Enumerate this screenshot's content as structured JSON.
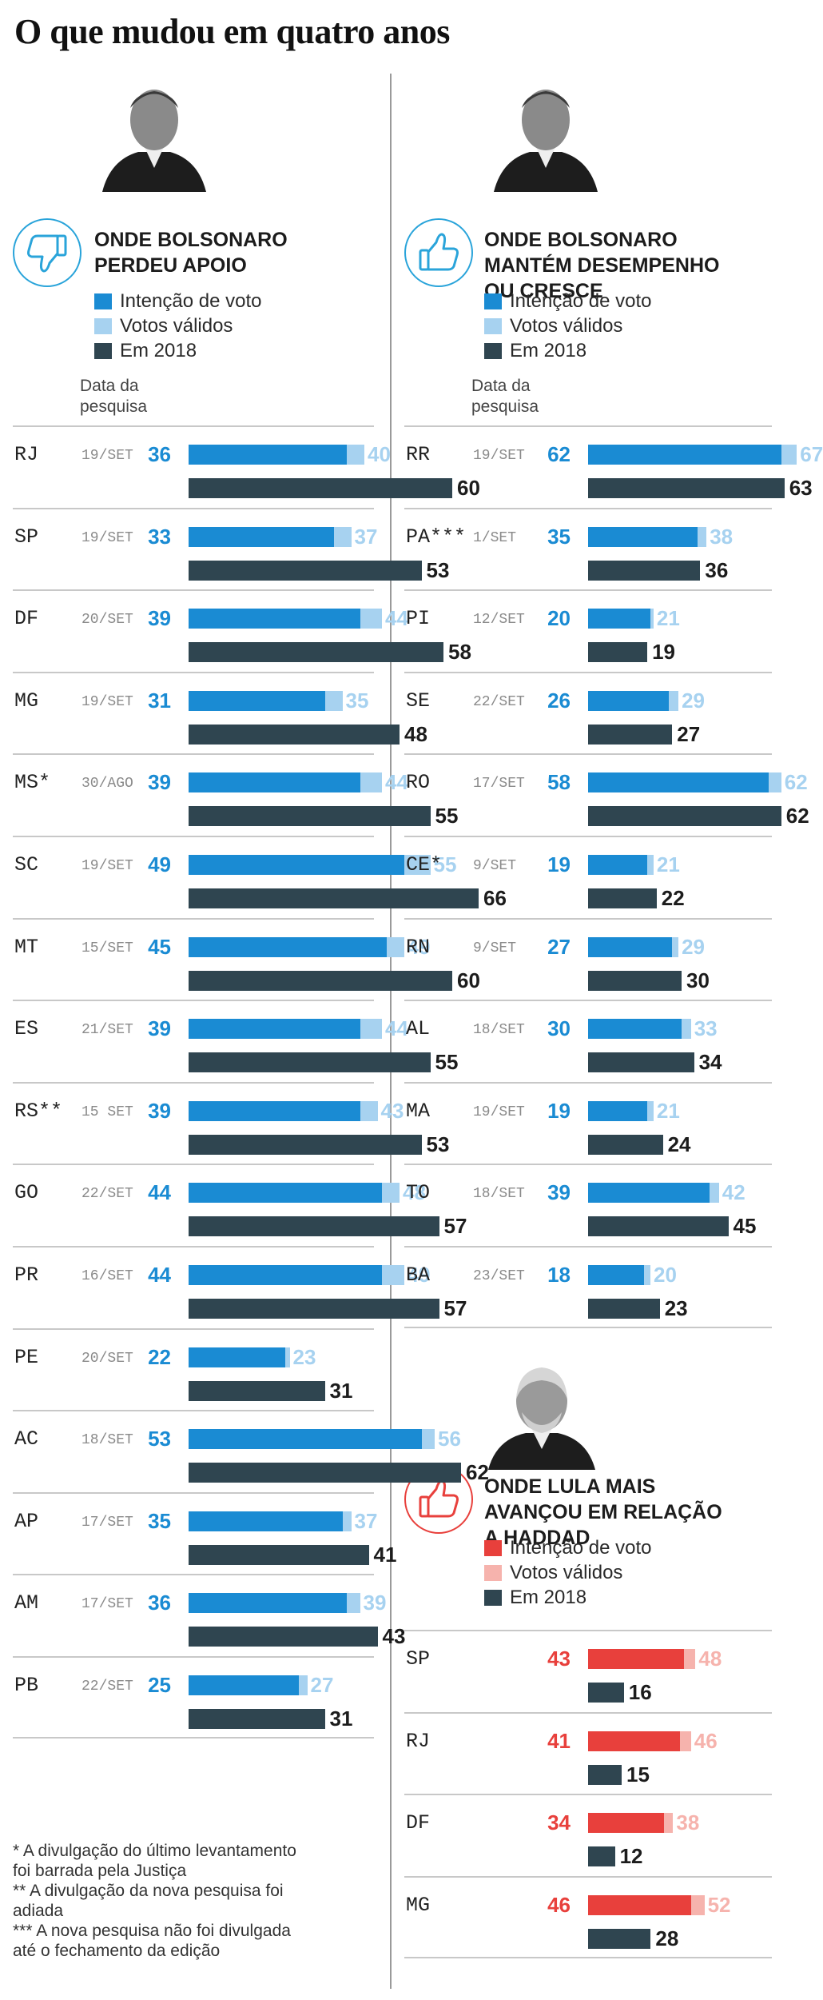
{
  "title": "O que mudou em quatro anos",
  "colors": {
    "blue": "#1a8bd3",
    "light_blue": "#a7d2f0",
    "dark": "#2f4550",
    "red": "#e8403c",
    "pink": "#f6b3ad"
  },
  "legend": {
    "intencao": "Intenção de voto",
    "validos": "Votos válidos",
    "em2018": "Em 2018"
  },
  "date_header_line1": "Data da",
  "date_header_line2": "pesquisa",
  "sections": [
    {
      "title_lines": [
        "ONDE BOLSONARO",
        "PERDEU APOIO"
      ],
      "icon": "thumbs-down-icon"
    },
    {
      "title_lines": [
        "ONDE BOLSONARO",
        "MANTÉM DESEMPENHO",
        "OU CRESCE"
      ],
      "icon": "thumbs-up-icon"
    },
    {
      "title_lines": [
        "ONDE LULA MAIS",
        "AVANÇOU EM RELAÇÃO",
        "A HADDAD"
      ],
      "icon": "thumbs-up-icon"
    }
  ],
  "footnotes": [
    "* A divulgação do último levantamento",
    "foi barrada pela Justiça",
    "** A divulgação da nova pesquisa foi",
    "adiada",
    "*** A nova pesquisa não foi divulgada",
    "até o fechamento da edição"
  ],
  "chart_data": [
    {
      "type": "bar",
      "title": "ONDE BOLSONARO PERDEU APOIO",
      "series": [
        {
          "name": "Intenção de voto",
          "values": [
            36,
            33,
            39,
            31,
            39,
            49,
            45,
            39,
            39,
            44,
            44,
            22,
            53,
            35,
            36,
            25
          ]
        },
        {
          "name": "Votos válidos",
          "values": [
            40,
            37,
            44,
            35,
            44,
            55,
            49,
            44,
            43,
            48,
            49,
            23,
            56,
            37,
            39,
            27
          ]
        },
        {
          "name": "Em 2018",
          "values": [
            60,
            53,
            58,
            48,
            55,
            66,
            60,
            55,
            53,
            57,
            57,
            31,
            62,
            41,
            43,
            31
          ]
        }
      ],
      "categories": [
        "RJ",
        "SP",
        "DF",
        "MG",
        "MS*",
        "SC",
        "MT",
        "ES",
        "RS**",
        "GO",
        "PR",
        "PE",
        "AC",
        "AP",
        "AM",
        "PB"
      ],
      "dates": [
        "19/SET",
        "19/SET",
        "20/SET",
        "19/SET",
        "30/AGO",
        "19/SET",
        "15/SET",
        "21/SET",
        "15 SET",
        "22/SET",
        "16/SET",
        "20/SET",
        "18/SET",
        "17/SET",
        "17/SET",
        "22/SET"
      ]
    },
    {
      "type": "bar",
      "title": "ONDE BOLSONARO MANTÉM DESEMPENHO OU CRESCE",
      "series": [
        {
          "name": "Intenção de voto",
          "values": [
            62,
            35,
            20,
            26,
            58,
            19,
            27,
            30,
            19,
            39,
            18
          ]
        },
        {
          "name": "Votos válidos",
          "values": [
            67,
            38,
            21,
            29,
            62,
            21,
            29,
            33,
            21,
            42,
            20
          ]
        },
        {
          "name": "Em 2018",
          "values": [
            63,
            36,
            19,
            27,
            62,
            22,
            30,
            34,
            24,
            45,
            23
          ]
        }
      ],
      "categories": [
        "RR",
        "PA***",
        "PI",
        "SE",
        "RO",
        "CE*",
        "RN",
        "AL",
        "MA",
        "TO",
        "BA"
      ],
      "dates": [
        "19/SET",
        "1/SET",
        "12/SET",
        "22/SET",
        "17/SET",
        "9/SET",
        "9/SET",
        "18/SET",
        "19/SET",
        "18/SET",
        "23/SET"
      ]
    },
    {
      "type": "bar",
      "title": "ONDE LULA MAIS AVANÇOU EM RELAÇÃO A HADDAD",
      "series": [
        {
          "name": "Intenção de voto",
          "values": [
            43,
            41,
            34,
            46
          ]
        },
        {
          "name": "Votos válidos",
          "values": [
            48,
            46,
            38,
            52
          ]
        },
        {
          "name": "Em 2018",
          "values": [
            16,
            15,
            12,
            28
          ]
        }
      ],
      "categories": [
        "SP",
        "RJ",
        "DF",
        "MG"
      ],
      "dates": [
        "",
        "",
        "",
        ""
      ]
    }
  ]
}
